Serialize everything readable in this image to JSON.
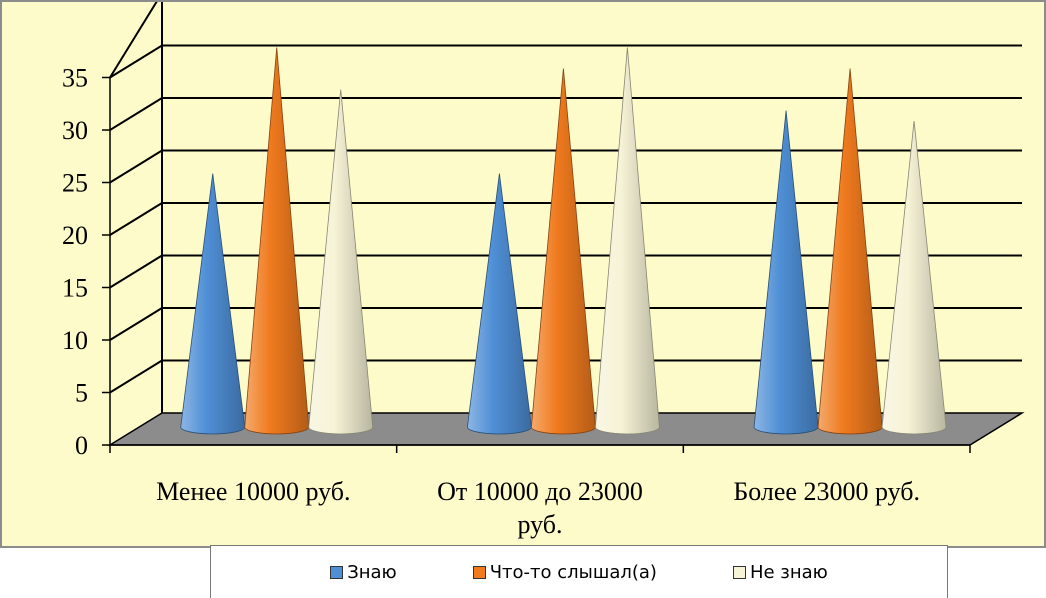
{
  "colors": {
    "background": "#fdfbc9",
    "floor": "#8c8c8c",
    "grid": "#000000"
  },
  "chart_data": {
    "type": "bar",
    "subtype": "3d-cone",
    "categories": [
      "Менее 10000 руб.",
      "От 10000 до 23000 руб.",
      "Более 23000 руб."
    ],
    "series": [
      {
        "name": "Знаю",
        "color": "#4f8fd6",
        "values": [
          23,
          23,
          29
        ]
      },
      {
        "name": "Что-то слышал(а)",
        "color": "#f07a1e",
        "values": [
          35,
          33,
          33
        ]
      },
      {
        "name": "Не знаю",
        "color": "#f6f3d6",
        "values": [
          31,
          35,
          28
        ]
      }
    ],
    "yticks": [
      "0",
      "5",
      "10",
      "15",
      "20",
      "25",
      "30",
      "35"
    ],
    "ylim": [
      0,
      35
    ],
    "grid": true,
    "legend_position": "bottom"
  }
}
